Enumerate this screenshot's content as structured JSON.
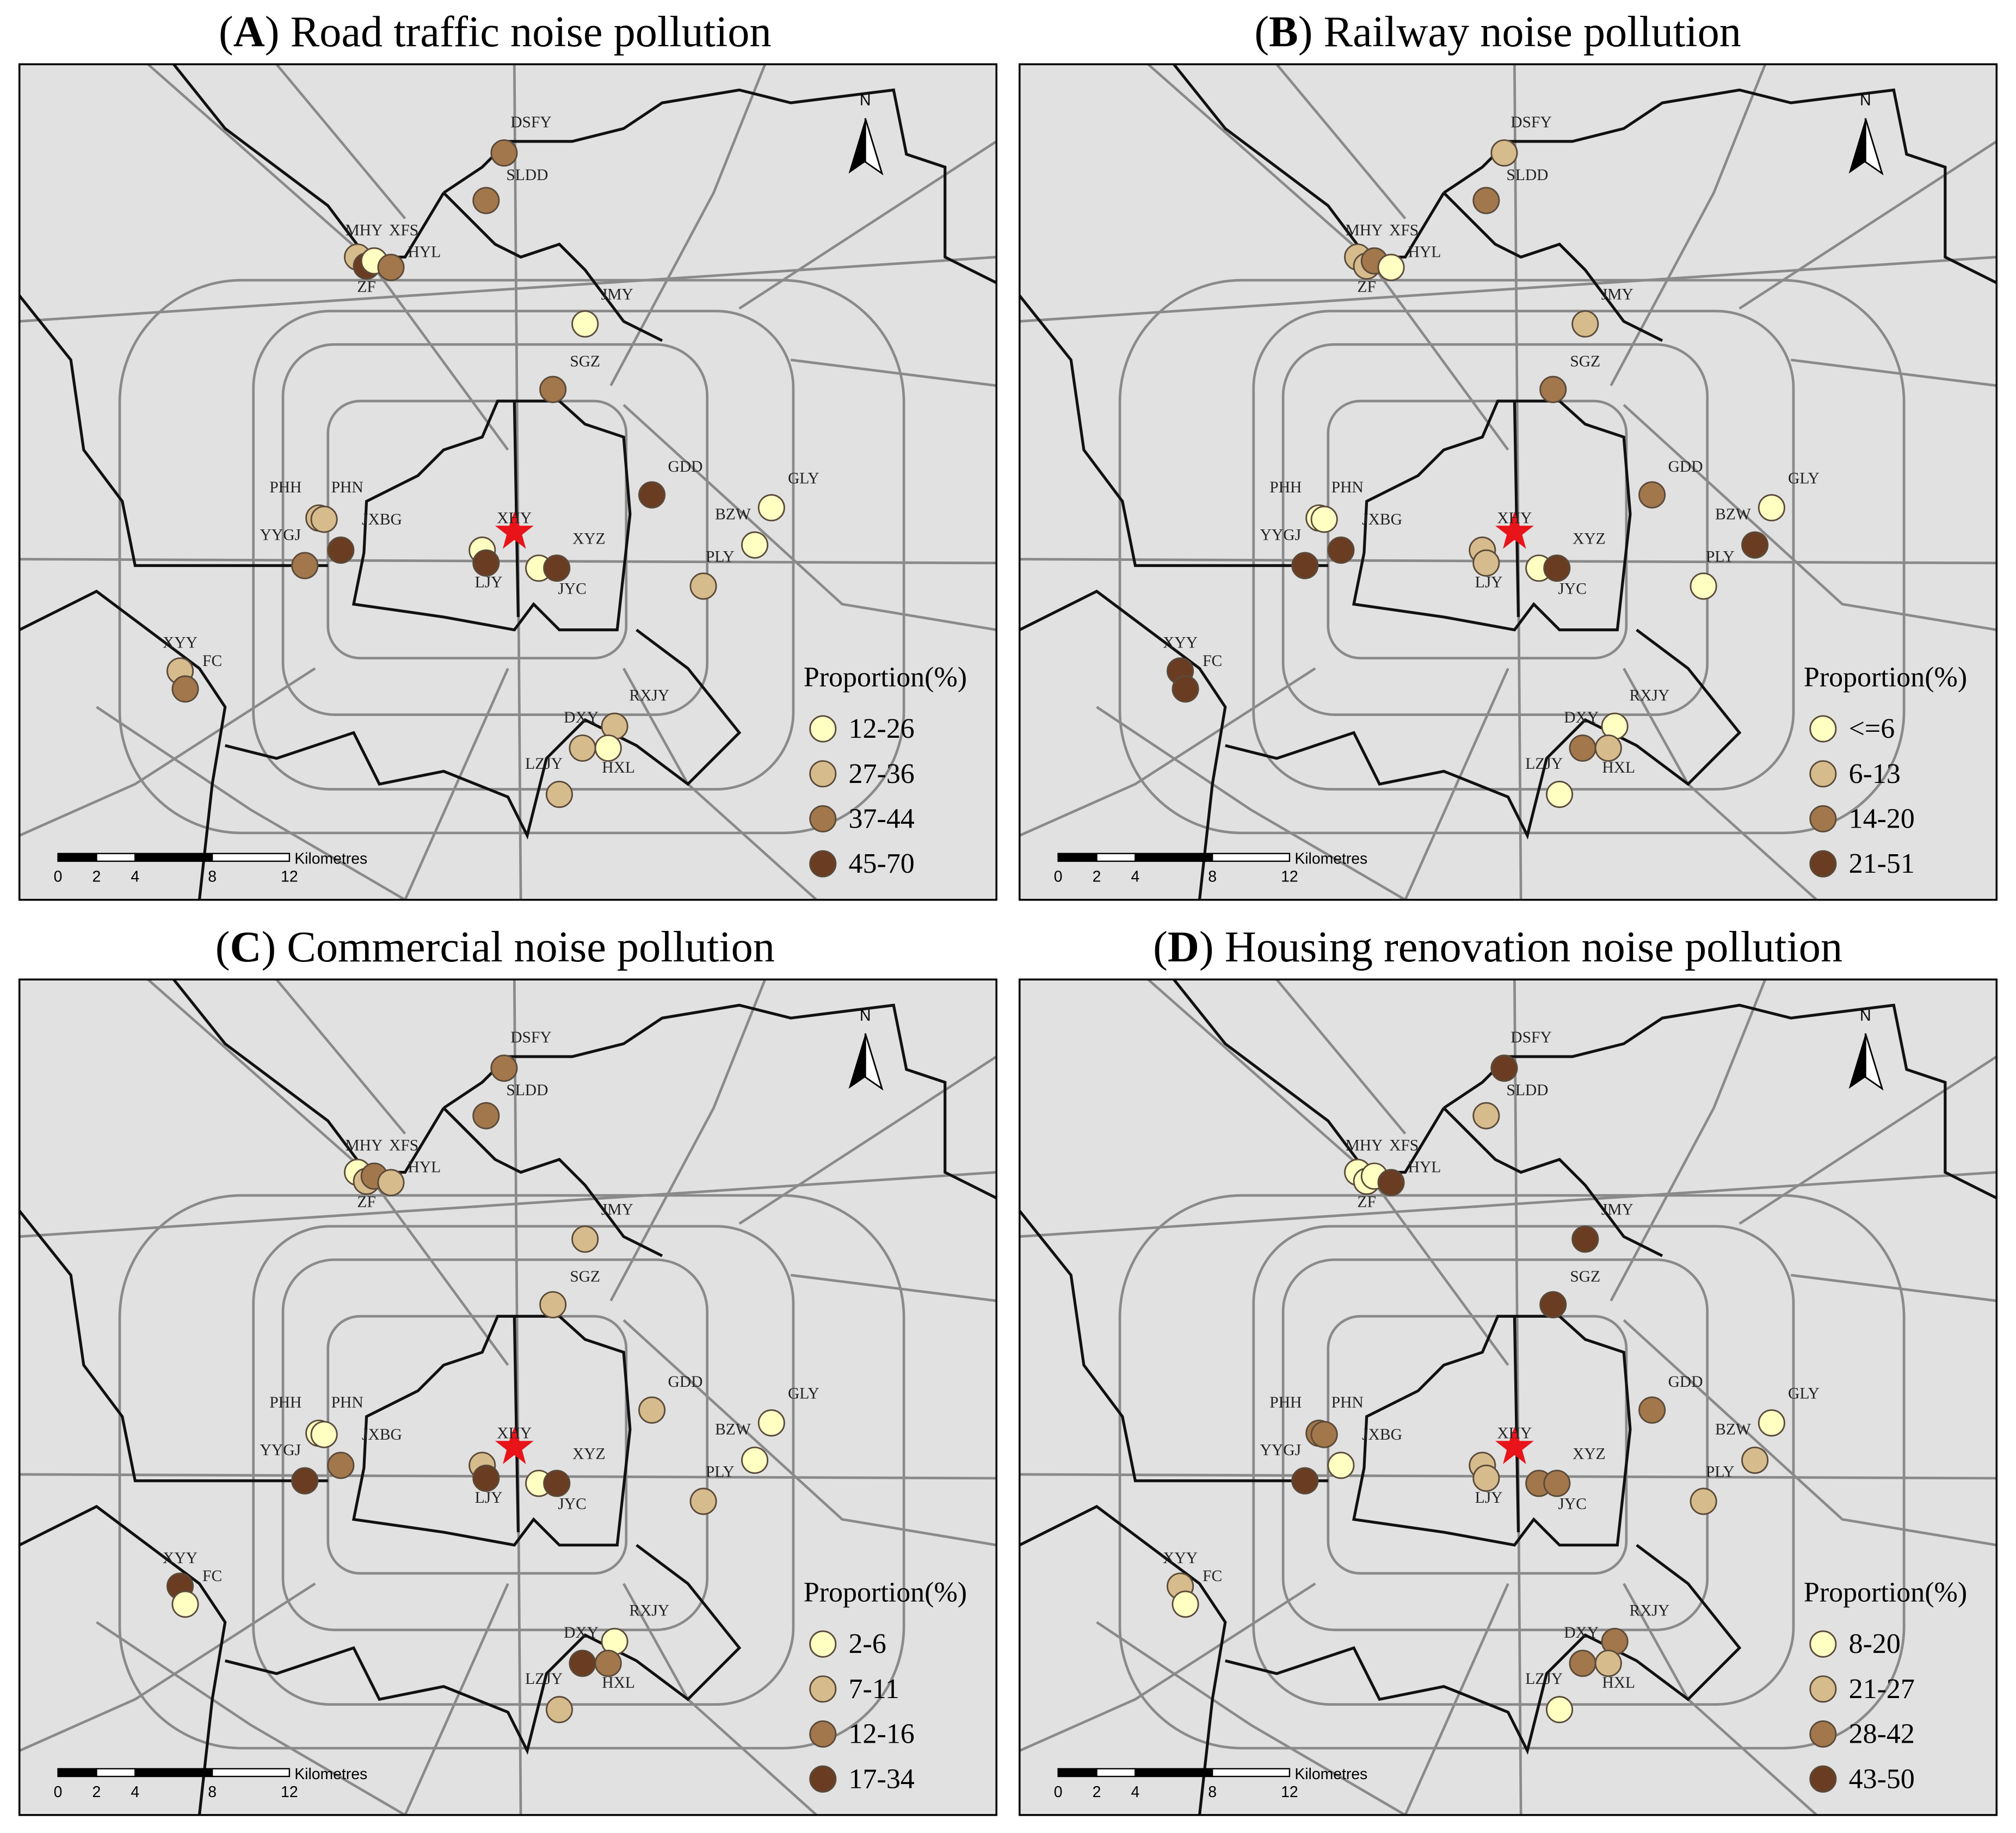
{
  "panels": [
    {
      "title_parts": [
        "(",
        "A",
        ") Road traffic noise pollution"
      ],
      "north": "N",
      "legend": {
        "title": "Proportion(%)",
        "items": [
          {
            "label": "12-26",
            "color": "#ffffc2"
          },
          {
            "label": "27-36",
            "color": "#d6bb8c"
          },
          {
            "label": "37-44",
            "color": "#a2774c"
          },
          {
            "label": "45-70",
            "color": "#6a3c22"
          }
        ]
      },
      "scale_bar": {
        "ticks": [
          "0",
          "2",
          "4",
          "8",
          "12"
        ],
        "unit": "Kilometres"
      },
      "sites": [
        {
          "label": "DSFY",
          "color": "#a2774c"
        },
        {
          "label": "SLDD",
          "color": "#a2774c"
        },
        {
          "label": "MHY",
          "color": "#d6bb8c"
        },
        {
          "label": "ZF",
          "color": "#6a3c22"
        },
        {
          "label": "XFS",
          "color": "#ffffc2"
        },
        {
          "label": "HYL",
          "color": "#a2774c"
        },
        {
          "label": "JMY",
          "color": "#ffffc2"
        },
        {
          "label": "SGZ",
          "color": "#a2774c"
        },
        {
          "label": "GDD",
          "color": "#6a3c22"
        },
        {
          "label": "GLY",
          "color": "#ffffc2"
        },
        {
          "label": "BZW",
          "color": "#ffffc2"
        },
        {
          "label": "PLY",
          "color": "#d6bb8c"
        },
        {
          "label": "PHH",
          "color": "#d6bb8c"
        },
        {
          "label": "PHN",
          "color": "#d6bb8c"
        },
        {
          "label": "JXBG",
          "color": "#6a3c22"
        },
        {
          "label": "YYGJ",
          "color": "#a2774c"
        },
        {
          "label": "XHY",
          "color": "#ffffc2"
        },
        {
          "label": "LJY",
          "color": "#6a3c22"
        },
        {
          "label": "XYZ",
          "color": "#ffffc2"
        },
        {
          "label": "JYC",
          "color": "#6a3c22"
        },
        {
          "label": "XYY",
          "color": "#d6bb8c"
        },
        {
          "label": "FC",
          "color": "#a2774c"
        },
        {
          "label": "DXY",
          "color": "#d6bb8c"
        },
        {
          "label": "RXJY",
          "color": "#d6bb8c"
        },
        {
          "label": "HXL",
          "color": "#ffffc2"
        },
        {
          "label": "LZJY",
          "color": "#d6bb8c"
        }
      ]
    },
    {
      "title_parts": [
        "(",
        "B",
        ") Railway noise pollution"
      ],
      "north": "N",
      "legend": {
        "title": "Proportion(%)",
        "items": [
          {
            "label": "<=6",
            "color": "#ffffc2"
          },
          {
            "label": "6-13",
            "color": "#d6bb8c"
          },
          {
            "label": "14-20",
            "color": "#a2774c"
          },
          {
            "label": "21-51",
            "color": "#6a3c22"
          }
        ]
      },
      "scale_bar": {
        "ticks": [
          "0",
          "2",
          "4",
          "8",
          "12"
        ],
        "unit": "Kilometres"
      },
      "sites": [
        {
          "label": "DSFY",
          "color": "#d6bb8c"
        },
        {
          "label": "SLDD",
          "color": "#a2774c"
        },
        {
          "label": "MHY",
          "color": "#d6bb8c"
        },
        {
          "label": "ZF",
          "color": "#d6bb8c"
        },
        {
          "label": "XFS",
          "color": "#a2774c"
        },
        {
          "label": "HYL",
          "color": "#ffffc2"
        },
        {
          "label": "JMY",
          "color": "#d6bb8c"
        },
        {
          "label": "SGZ",
          "color": "#a2774c"
        },
        {
          "label": "GDD",
          "color": "#a2774c"
        },
        {
          "label": "GLY",
          "color": "#ffffc2"
        },
        {
          "label": "BZW",
          "color": "#6a3c22"
        },
        {
          "label": "PLY",
          "color": "#ffffc2"
        },
        {
          "label": "PHH",
          "color": "#ffffc2"
        },
        {
          "label": "PHN",
          "color": "#ffffc2"
        },
        {
          "label": "JXBG",
          "color": "#6a3c22"
        },
        {
          "label": "YYGJ",
          "color": "#6a3c22"
        },
        {
          "label": "XHY",
          "color": "#d6bb8c"
        },
        {
          "label": "LJY",
          "color": "#d6bb8c"
        },
        {
          "label": "XYZ",
          "color": "#ffffc2"
        },
        {
          "label": "JYC",
          "color": "#6a3c22"
        },
        {
          "label": "XYY",
          "color": "#6a3c22"
        },
        {
          "label": "FC",
          "color": "#6a3c22"
        },
        {
          "label": "DXY",
          "color": "#a2774c"
        },
        {
          "label": "RXJY",
          "color": "#ffffc2"
        },
        {
          "label": "HXL",
          "color": "#d6bb8c"
        },
        {
          "label": "LZJY",
          "color": "#ffffc2"
        }
      ]
    },
    {
      "title_parts": [
        "(",
        "C",
        ") Commercial noise pollution"
      ],
      "north": "N",
      "legend": {
        "title": "Proportion(%)",
        "items": [
          {
            "label": "2-6",
            "color": "#ffffc2"
          },
          {
            "label": "7-11",
            "color": "#d6bb8c"
          },
          {
            "label": "12-16",
            "color": "#a2774c"
          },
          {
            "label": "17-34",
            "color": "#6a3c22"
          }
        ]
      },
      "scale_bar": {
        "ticks": [
          "0",
          "2",
          "4",
          "8",
          "12"
        ],
        "unit": "Kilometres"
      },
      "sites": [
        {
          "label": "DSFY",
          "color": "#a2774c"
        },
        {
          "label": "SLDD",
          "color": "#a2774c"
        },
        {
          "label": "MHY",
          "color": "#ffffc2"
        },
        {
          "label": "ZF",
          "color": "#d6bb8c"
        },
        {
          "label": "XFS",
          "color": "#a2774c"
        },
        {
          "label": "HYL",
          "color": "#d6bb8c"
        },
        {
          "label": "JMY",
          "color": "#d6bb8c"
        },
        {
          "label": "SGZ",
          "color": "#d6bb8c"
        },
        {
          "label": "GDD",
          "color": "#d6bb8c"
        },
        {
          "label": "GLY",
          "color": "#ffffc2"
        },
        {
          "label": "BZW",
          "color": "#ffffc2"
        },
        {
          "label": "PLY",
          "color": "#d6bb8c"
        },
        {
          "label": "PHH",
          "color": "#ffffc2"
        },
        {
          "label": "PHN",
          "color": "#ffffc2"
        },
        {
          "label": "JXBG",
          "color": "#a2774c"
        },
        {
          "label": "YYGJ",
          "color": "#6a3c22"
        },
        {
          "label": "XHY",
          "color": "#d6bb8c"
        },
        {
          "label": "LJY",
          "color": "#6a3c22"
        },
        {
          "label": "XYZ",
          "color": "#ffffc2"
        },
        {
          "label": "JYC",
          "color": "#6a3c22"
        },
        {
          "label": "XYY",
          "color": "#6a3c22"
        },
        {
          "label": "FC",
          "color": "#ffffc2"
        },
        {
          "label": "DXY",
          "color": "#6a3c22"
        },
        {
          "label": "RXJY",
          "color": "#ffffc2"
        },
        {
          "label": "HXL",
          "color": "#a2774c"
        },
        {
          "label": "LZJY",
          "color": "#d6bb8c"
        }
      ]
    },
    {
      "title_parts": [
        "(",
        "D",
        ") Housing renovation noise pollution"
      ],
      "north": "N",
      "legend": {
        "title": "Proportion(%)",
        "items": [
          {
            "label": "8-20",
            "color": "#ffffc2"
          },
          {
            "label": "21-27",
            "color": "#d6bb8c"
          },
          {
            "label": "28-42",
            "color": "#a2774c"
          },
          {
            "label": "43-50",
            "color": "#6a3c22"
          }
        ]
      },
      "scale_bar": {
        "ticks": [
          "0",
          "2",
          "4",
          "8",
          "12"
        ],
        "unit": "Kilometres"
      },
      "sites": [
        {
          "label": "DSFY",
          "color": "#6a3c22"
        },
        {
          "label": "SLDD",
          "color": "#d6bb8c"
        },
        {
          "label": "MHY",
          "color": "#ffffc2"
        },
        {
          "label": "ZF",
          "color": "#ffffc2"
        },
        {
          "label": "XFS",
          "color": "#ffffc2"
        },
        {
          "label": "HYL",
          "color": "#6a3c22"
        },
        {
          "label": "JMY",
          "color": "#6a3c22"
        },
        {
          "label": "SGZ",
          "color": "#6a3c22"
        },
        {
          "label": "GDD",
          "color": "#a2774c"
        },
        {
          "label": "GLY",
          "color": "#ffffc2"
        },
        {
          "label": "BZW",
          "color": "#d6bb8c"
        },
        {
          "label": "PLY",
          "color": "#d6bb8c"
        },
        {
          "label": "PHH",
          "color": "#a2774c"
        },
        {
          "label": "PHN",
          "color": "#a2774c"
        },
        {
          "label": "JXBG",
          "color": "#ffffc2"
        },
        {
          "label": "YYGJ",
          "color": "#6a3c22"
        },
        {
          "label": "XHY",
          "color": "#d6bb8c"
        },
        {
          "label": "LJY",
          "color": "#d6bb8c"
        },
        {
          "label": "XYZ",
          "color": "#a2774c"
        },
        {
          "label": "JYC",
          "color": "#a2774c"
        },
        {
          "label": "XYY",
          "color": "#d6bb8c"
        },
        {
          "label": "FC",
          "color": "#ffffc2"
        },
        {
          "label": "DXY",
          "color": "#a2774c"
        },
        {
          "label": "RXJY",
          "color": "#a2774c"
        },
        {
          "label": "HXL",
          "color": "#d6bb8c"
        },
        {
          "label": "LZJY",
          "color": "#ffffc2"
        }
      ]
    }
  ]
}
